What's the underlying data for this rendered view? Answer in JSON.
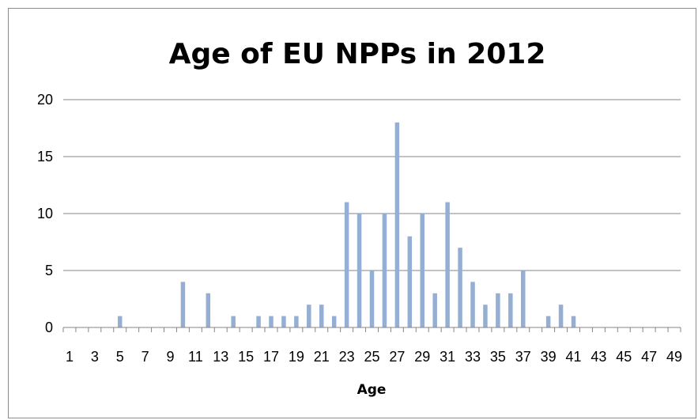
{
  "chart_data": {
    "type": "bar",
    "title": "Age of EU NPPs in 2012",
    "xlabel": "Age",
    "ylabel": "",
    "ylim": [
      0,
      20
    ],
    "yticks": [
      0,
      5,
      10,
      15,
      20
    ],
    "grid": true,
    "legend": "none",
    "bar_color": "#95aed3",
    "categories": [
      1,
      2,
      3,
      4,
      5,
      6,
      7,
      8,
      9,
      10,
      11,
      12,
      13,
      14,
      15,
      16,
      17,
      18,
      19,
      20,
      21,
      22,
      23,
      24,
      25,
      26,
      27,
      28,
      29,
      30,
      31,
      32,
      33,
      34,
      35,
      36,
      37,
      38,
      39,
      40,
      41,
      42,
      43,
      44,
      45,
      46,
      47,
      48,
      49
    ],
    "tick_labels": [
      "1",
      "3",
      "5",
      "7",
      "9",
      "11",
      "13",
      "15",
      "17",
      "19",
      "21",
      "23",
      "25",
      "27",
      "29",
      "31",
      "33",
      "35",
      "37",
      "39",
      "41",
      "43",
      "45",
      "47",
      "49"
    ],
    "values": [
      0,
      0,
      0,
      0,
      1,
      0,
      0,
      0,
      0,
      4,
      0,
      3,
      0,
      1,
      0,
      1,
      1,
      1,
      1,
      2,
      2,
      1,
      11,
      10,
      5,
      10,
      18,
      8,
      10,
      3,
      11,
      7,
      4,
      2,
      3,
      3,
      5,
      0,
      1,
      2,
      1,
      0,
      0,
      0,
      0,
      0,
      0,
      0,
      0
    ]
  }
}
